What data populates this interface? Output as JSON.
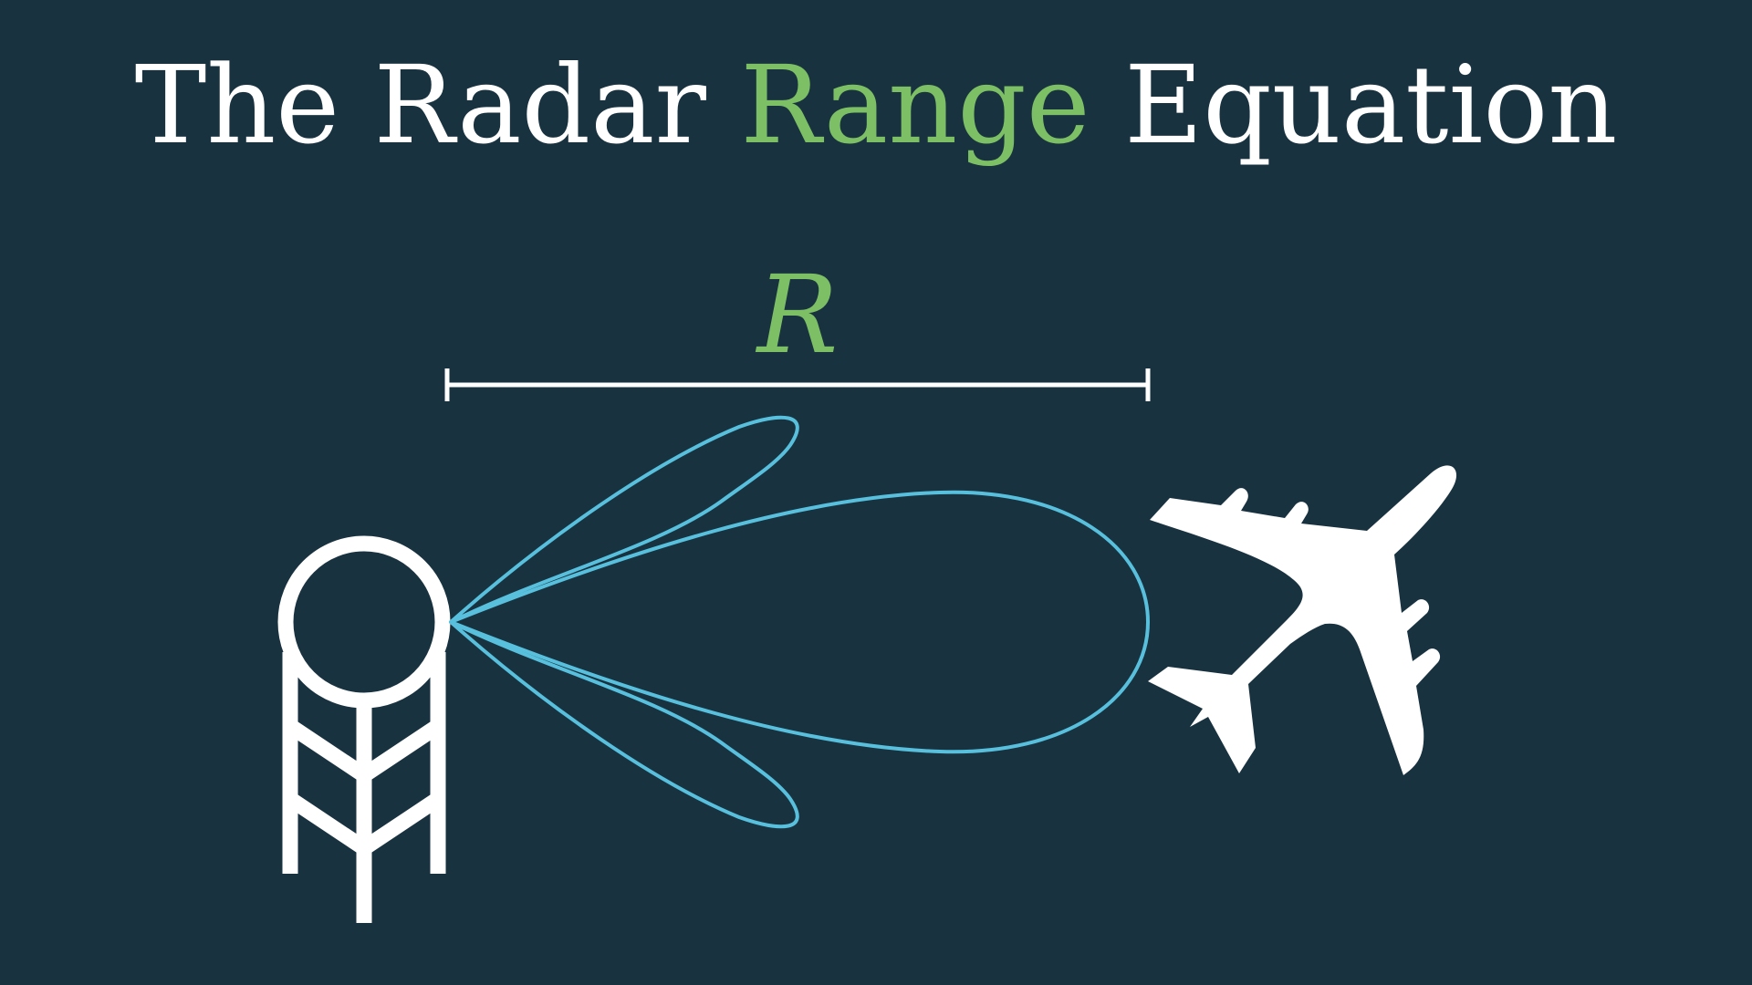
{
  "title": {
    "part1": "The Radar ",
    "accent": "Range",
    "part2": " Equation"
  },
  "range_label": "R",
  "colors": {
    "background": "#183240",
    "foreground": "#ffffff",
    "accent_green": "#7dbf64",
    "beam_blue": "#58c0dc"
  },
  "icons": {
    "radar": "radar-tower-icon",
    "aircraft": "airplane-icon"
  }
}
